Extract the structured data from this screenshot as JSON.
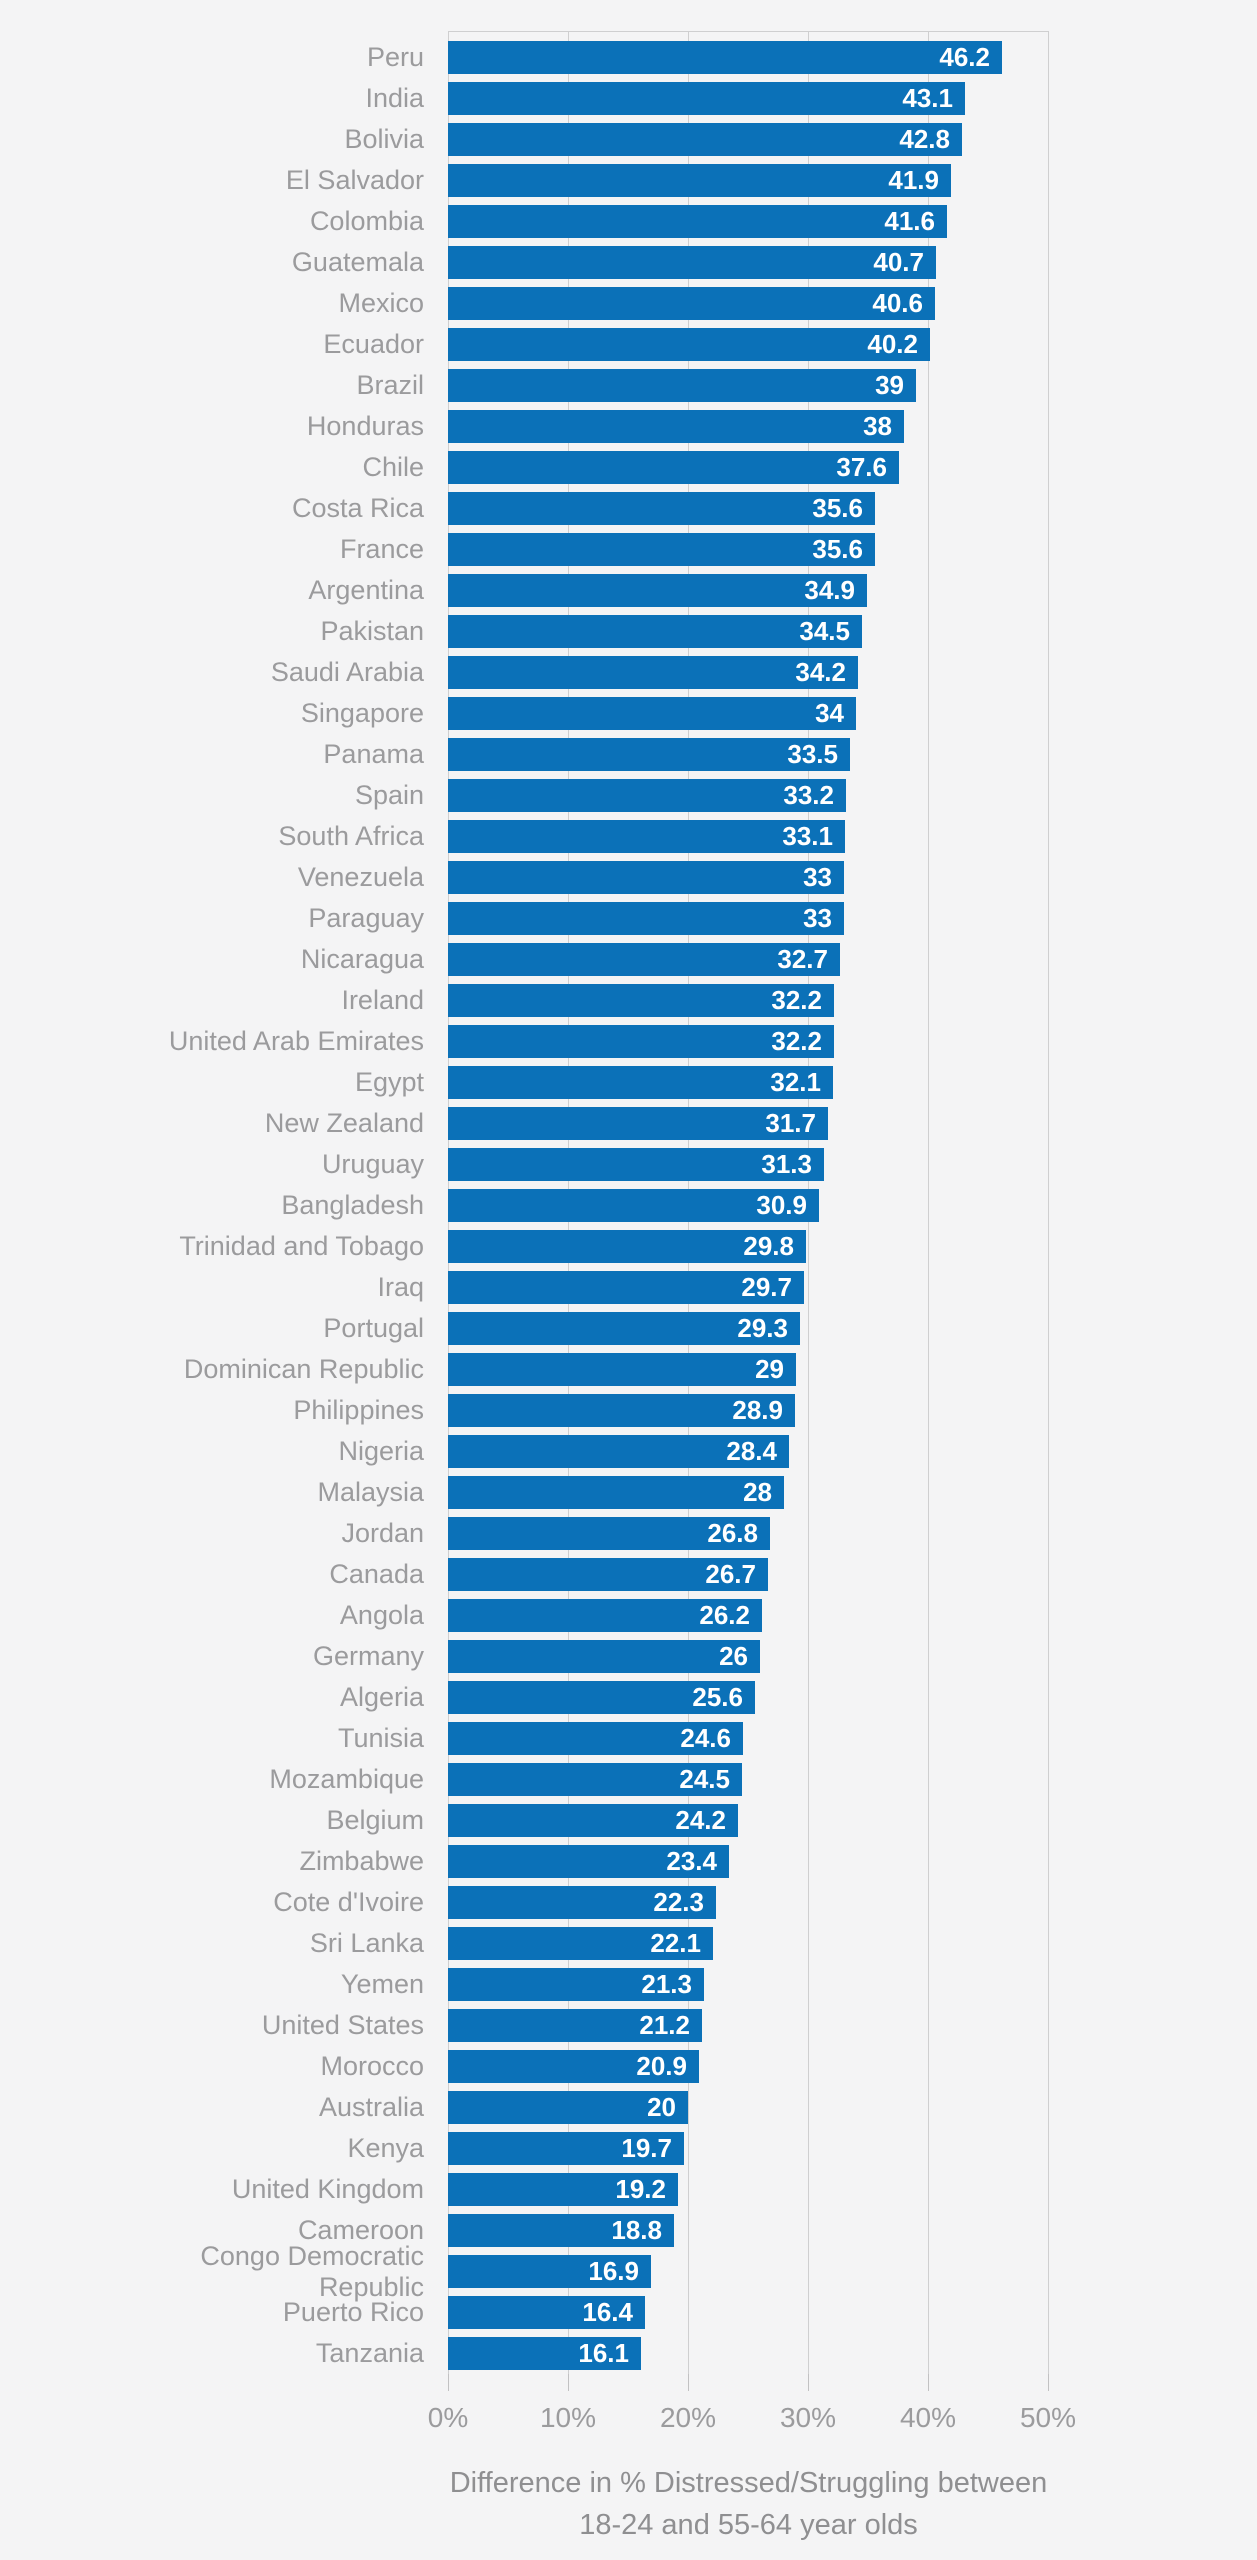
{
  "colors": {
    "background": "#f4f4f5",
    "bar": "#0b71b8",
    "gridline": "#cfcfd0",
    "tick": "#c2c2c3",
    "axis_text": "#9b9b9d",
    "axis_title_text": "#8f8f91",
    "value_text": "#ffffff"
  },
  "chart_data": {
    "type": "bar",
    "orientation": "horizontal",
    "title": "",
    "xlabel_line1": "Difference in % Distressed/Struggling between",
    "xlabel_line2": "18-24 and 55-64 year olds",
    "xlim": [
      0,
      50
    ],
    "x_ticks": [
      "0%",
      "10%",
      "20%",
      "30%",
      "40%",
      "50%"
    ],
    "grid": true,
    "legend": false,
    "categories": [
      "Peru",
      "India",
      "Bolivia",
      "El Salvador",
      "Colombia",
      "Guatemala",
      "Mexico",
      "Ecuador",
      "Brazil",
      "Honduras",
      "Chile",
      "Costa Rica",
      "France",
      "Argentina",
      "Pakistan",
      "Saudi Arabia",
      "Singapore",
      "Panama",
      "Spain",
      "South Africa",
      "Venezuela",
      "Paraguay",
      "Nicaragua",
      "Ireland",
      "United Arab Emirates",
      "Egypt",
      "New Zealand",
      "Uruguay",
      "Bangladesh",
      "Trinidad and Tobago",
      "Iraq",
      "Portugal",
      "Dominican Republic",
      "Philippines",
      "Nigeria",
      "Malaysia",
      "Jordan",
      "Canada",
      "Angola",
      "Germany",
      "Algeria",
      "Tunisia",
      "Mozambique",
      "Belgium",
      "Zimbabwe",
      "Cote d'Ivoire",
      "Sri Lanka",
      "Yemen",
      "United States",
      "Morocco",
      "Australia",
      "Kenya",
      "United Kingdom",
      "Cameroon",
      "Congo Democratic Republic",
      "Puerto Rico",
      "Tanzania"
    ],
    "values": [
      46.2,
      43.1,
      42.8,
      41.9,
      41.6,
      40.7,
      40.6,
      40.2,
      39,
      38,
      37.6,
      35.6,
      35.6,
      34.9,
      34.5,
      34.2,
      34,
      33.5,
      33.2,
      33.1,
      33,
      33,
      32.7,
      32.2,
      32.2,
      32.1,
      31.7,
      31.3,
      30.9,
      29.8,
      29.7,
      29.3,
      29,
      28.9,
      28.4,
      28,
      26.8,
      26.7,
      26.2,
      26,
      25.6,
      24.6,
      24.5,
      24.2,
      23.4,
      22.3,
      22.1,
      21.3,
      21.2,
      20.9,
      20,
      19.7,
      19.2,
      18.8,
      16.9,
      16.4,
      16.1
    ],
    "value_labels": [
      "46.2",
      "43.1",
      "42.8",
      "41.9",
      "41.6",
      "40.7",
      "40.6",
      "40.2",
      "39",
      "38",
      "37.6",
      "35.6",
      "35.6",
      "34.9",
      "34.5",
      "34.2",
      "34",
      "33.5",
      "33.2",
      "33.1",
      "33",
      "33",
      "32.7",
      "32.2",
      "32.2",
      "32.1",
      "31.7",
      "31.3",
      "30.9",
      "29.8",
      "29.7",
      "29.3",
      "29",
      "28.9",
      "28.4",
      "28",
      "26.8",
      "26.7",
      "26.2",
      "26",
      "25.6",
      "24.6",
      "24.5",
      "24.2",
      "23.4",
      "22.3",
      "22.1",
      "21.3",
      "21.2",
      "20.9",
      "20",
      "19.7",
      "19.2",
      "18.8",
      "16.9",
      "16.4",
      "16.1"
    ]
  }
}
